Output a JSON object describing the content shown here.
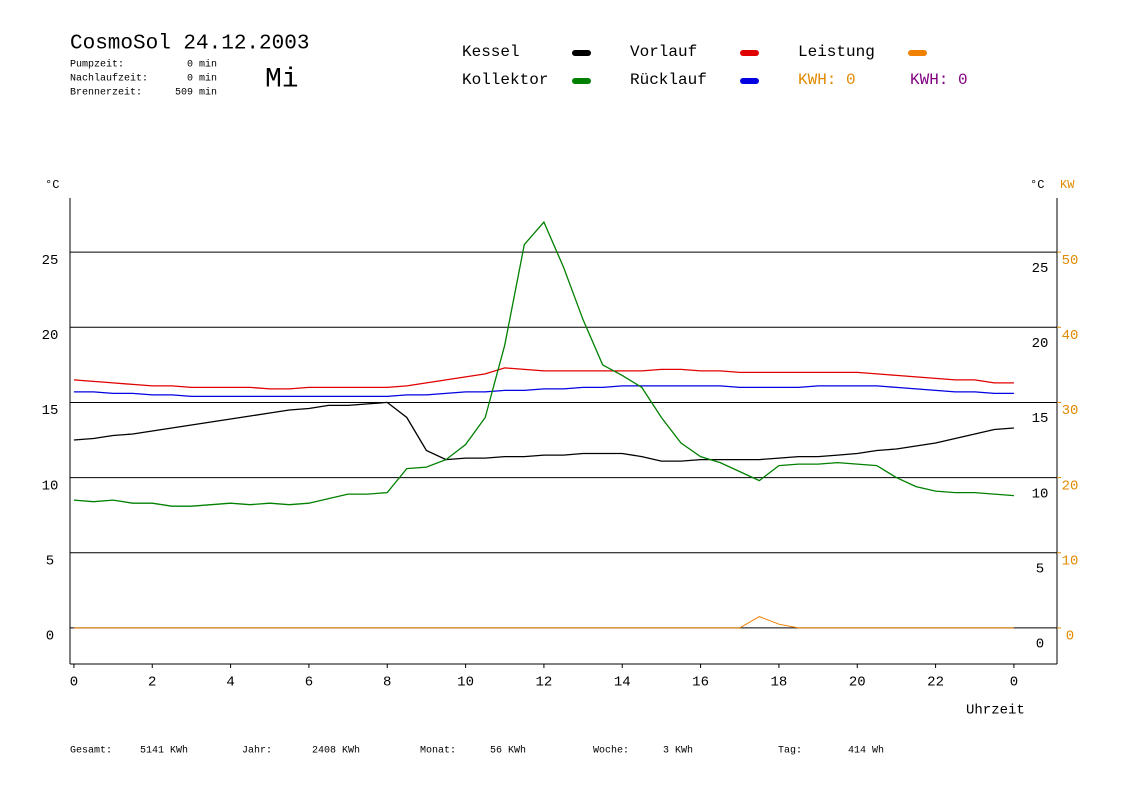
{
  "chart_data": {
    "type": "line",
    "title": "CosmoSol 24.12.2003",
    "day": "Mi",
    "info": [
      {
        "label": "Pumpzeit:",
        "value": "0 min"
      },
      {
        "label": "Nachlaufzeit:",
        "value": "0 min"
      },
      {
        "label": "Brennerzeit:",
        "value": "509 min"
      }
    ],
    "kwh": [
      {
        "label": "KWH: 0",
        "color": "#e08a00"
      },
      {
        "label": "KWH: 0",
        "color": "#800080"
      }
    ],
    "y_label": "°C",
    "y2_label_c": "°C",
    "y2_label": "KW",
    "x_label": "Uhrzeit",
    "footer": [
      {
        "label": "Gesamt:",
        "value": "5141 KWh"
      },
      {
        "label": "Jahr:",
        "value": "2408 KWh"
      },
      {
        "label": "Monat:",
        "value": "56 KWh"
      },
      {
        "label": "Woche:",
        "value": "3 KWh"
      },
      {
        "label": "Tag:",
        "value": "414 Wh"
      }
    ],
    "x": [
      0,
      0.5,
      1,
      1.5,
      2,
      2.5,
      3,
      3.5,
      4,
      4.5,
      5,
      5.5,
      6,
      6.5,
      7,
      7.5,
      8,
      8.5,
      9,
      9.5,
      10,
      10.5,
      11,
      11.5,
      12,
      12.5,
      13,
      13.5,
      14,
      14.5,
      15,
      15.5,
      16,
      16.5,
      17,
      17.5,
      18,
      18.5,
      19,
      19.5,
      20,
      20.5,
      21,
      21.5,
      22,
      22.5,
      23,
      23.5,
      24
    ],
    "xlim": [
      -0.1,
      25.1
    ],
    "xticks": [
      0,
      2,
      4,
      6,
      8,
      10,
      12,
      14,
      16,
      18,
      20,
      22,
      {
        "value": 24,
        "label": "0"
      }
    ],
    "ylim": [
      -2.4,
      28.6
    ],
    "yticks": [
      0,
      5,
      10,
      15,
      20,
      25
    ],
    "y2lim": [
      -4.8,
      57.2
    ],
    "y2ticks": [
      0,
      10,
      20,
      30,
      40,
      50
    ],
    "y2color": "#e08a00",
    "grid": true,
    "series": [
      {
        "name": "Kessel",
        "color": "#000000",
        "values": [
          12.5,
          12.6,
          12.8,
          12.9,
          13.1,
          13.3,
          13.5,
          13.7,
          13.9,
          14.1,
          14.3,
          14.5,
          14.6,
          14.8,
          14.8,
          14.9,
          15.0,
          14.0,
          11.8,
          11.2,
          11.3,
          11.3,
          11.4,
          11.4,
          11.5,
          11.5,
          11.6,
          11.6,
          11.6,
          11.4,
          11.1,
          11.1,
          11.2,
          11.2,
          11.2,
          11.2,
          11.3,
          11.4,
          11.4,
          11.5,
          11.6,
          11.8,
          11.9,
          12.1,
          12.3,
          12.6,
          12.9,
          13.2,
          13.3
        ]
      },
      {
        "name": "Kollektor",
        "color": "#008000",
        "values": [
          8.5,
          8.4,
          8.5,
          8.3,
          8.3,
          8.1,
          8.1,
          8.2,
          8.3,
          8.2,
          8.3,
          8.2,
          8.3,
          8.6,
          8.9,
          8.9,
          9.0,
          10.6,
          10.7,
          11.2,
          12.2,
          14.0,
          18.8,
          25.5,
          27.0,
          24.0,
          20.5,
          17.5,
          16.8,
          16.0,
          14.0,
          12.3,
          11.4,
          11.0,
          10.4,
          9.8,
          10.8,
          10.9,
          10.9,
          11.0,
          10.9,
          10.8,
          10.0,
          9.4,
          9.1,
          9.0,
          9.0,
          8.9,
          8.8
        ]
      },
      {
        "name": "Vorlauf",
        "color": "#e00000",
        "values": [
          16.5,
          16.4,
          16.3,
          16.2,
          16.1,
          16.1,
          16.0,
          16.0,
          16.0,
          16.0,
          15.9,
          15.9,
          16.0,
          16.0,
          16.0,
          16.0,
          16.0,
          16.1,
          16.3,
          16.5,
          16.7,
          16.9,
          17.3,
          17.2,
          17.1,
          17.1,
          17.1,
          17.1,
          17.1,
          17.1,
          17.2,
          17.2,
          17.1,
          17.1,
          17.0,
          17.0,
          17.0,
          17.0,
          17.0,
          17.0,
          17.0,
          16.9,
          16.8,
          16.7,
          16.6,
          16.5,
          16.5,
          16.3,
          16.3
        ]
      },
      {
        "name": "Rücklauf",
        "color": "#0000e0",
        "values": [
          15.7,
          15.7,
          15.6,
          15.6,
          15.5,
          15.5,
          15.4,
          15.4,
          15.4,
          15.4,
          15.4,
          15.4,
          15.4,
          15.4,
          15.4,
          15.4,
          15.4,
          15.5,
          15.5,
          15.6,
          15.7,
          15.7,
          15.8,
          15.8,
          15.9,
          15.9,
          16.0,
          16.0,
          16.1,
          16.1,
          16.1,
          16.1,
          16.1,
          16.1,
          16.0,
          16.0,
          16.0,
          16.0,
          16.1,
          16.1,
          16.1,
          16.1,
          16.0,
          15.9,
          15.8,
          15.7,
          15.7,
          15.6,
          15.6
        ]
      },
      {
        "name": "Leistung",
        "color": "#f08000",
        "axis": "y2",
        "values": [
          0,
          0,
          0,
          0,
          0,
          0,
          0,
          0,
          0,
          0,
          0,
          0,
          0,
          0,
          0,
          0,
          0,
          0,
          0,
          0,
          0,
          0,
          0,
          0,
          0,
          0,
          0,
          0,
          0,
          0,
          0,
          0,
          0,
          0,
          0,
          1.5,
          0.5,
          0,
          0,
          0,
          0,
          0,
          0,
          0,
          0,
          0,
          0,
          0,
          0
        ]
      }
    ]
  }
}
